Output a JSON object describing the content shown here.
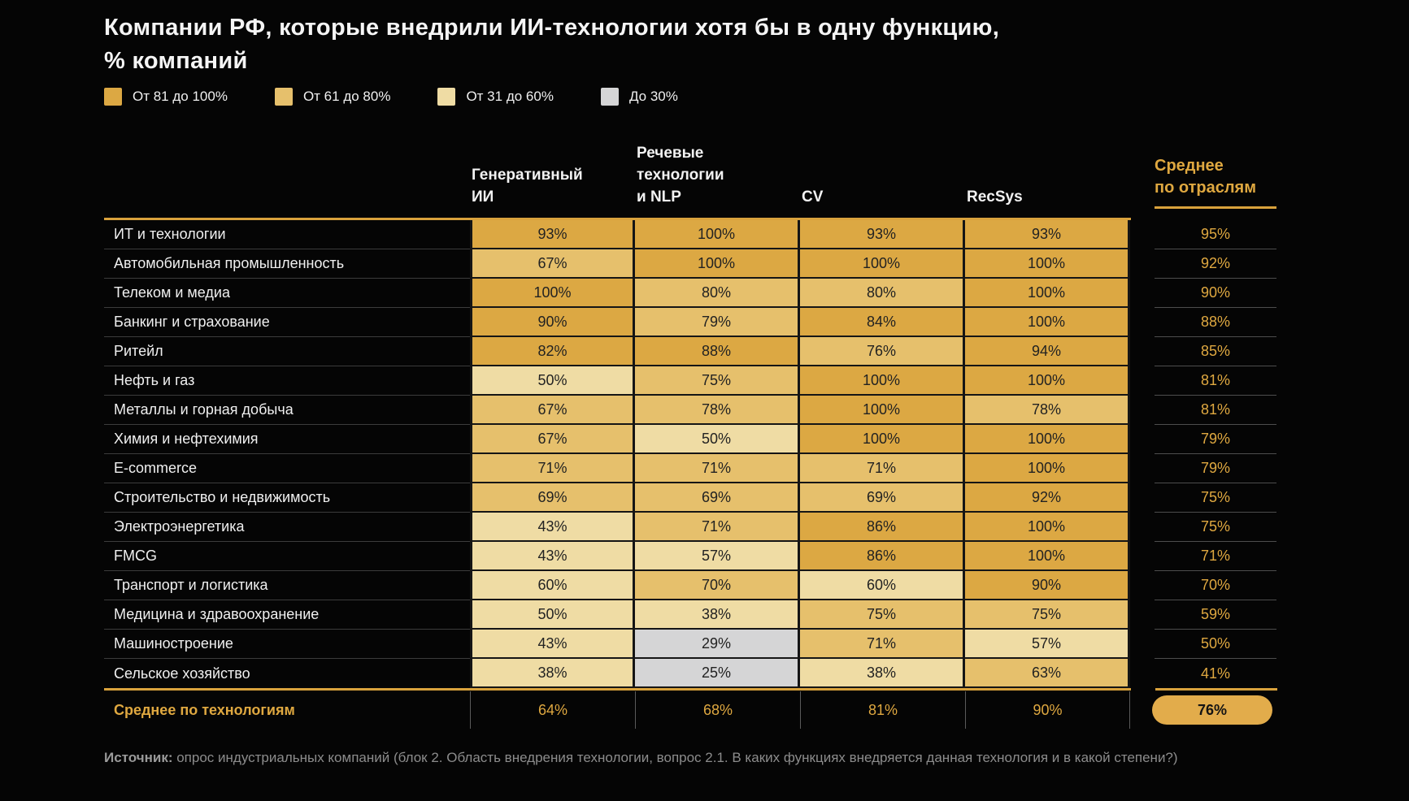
{
  "title": {
    "line1": "Компании РФ, которые внедрили ИИ-технологии хотя бы в одну функцию,",
    "line2": "% компаний"
  },
  "legend": {
    "items": [
      {
        "label": "От 81 до 100%",
        "color": "#DCA843",
        "min": 81
      },
      {
        "label": "От 61 до 80%",
        "color": "#E6C06C",
        "min": 61
      },
      {
        "label": "От 31 до 60%",
        "color": "#EFDCA4",
        "min": 31
      },
      {
        "label": "До 30%",
        "color": "#D5D5D6",
        "min": 0
      }
    ]
  },
  "header": {
    "columns": [
      "Генеративный\nИИ",
      "Речевые\nтехнологии\nи NLP",
      "CV",
      "RecSys"
    ],
    "avg": "Среднее\nпо отраслям"
  },
  "chart_data": {
    "type": "heatmap",
    "title": "Компании РФ, которые внедрили ИИ-технологии хотя бы в одну функцию, % компаний",
    "unit": "%",
    "columns": [
      "Генеративный ИИ",
      "Речевые технологии и NLP",
      "CV",
      "RecSys"
    ],
    "avg_column_header": "Среднее по отраслям",
    "legend_buckets": [
      "От 81 до 100%",
      "От 61 до 80%",
      "От 31 до 60%",
      "До 30%"
    ],
    "rows": [
      {
        "label": "ИТ и технологии",
        "values": [
          93,
          100,
          93,
          93
        ],
        "avg": 95
      },
      {
        "label": "Автомобильная промышленность",
        "values": [
          67,
          100,
          100,
          100
        ],
        "avg": 92
      },
      {
        "label": "Телеком и медиа",
        "values": [
          100,
          80,
          80,
          100
        ],
        "avg": 90
      },
      {
        "label": "Банкинг и страхование",
        "values": [
          90,
          79,
          84,
          100
        ],
        "avg": 88
      },
      {
        "label": "Ритейл",
        "values": [
          82,
          88,
          76,
          94
        ],
        "avg": 85
      },
      {
        "label": "Нефть и газ",
        "values": [
          50,
          75,
          100,
          100
        ],
        "avg": 81
      },
      {
        "label": "Металлы и горная добыча",
        "values": [
          67,
          78,
          100,
          78
        ],
        "avg": 81
      },
      {
        "label": "Химия и нефтехимия",
        "values": [
          67,
          50,
          100,
          100
        ],
        "avg": 79
      },
      {
        "label": "E-commerce",
        "values": [
          71,
          71,
          71,
          100
        ],
        "avg": 79
      },
      {
        "label": "Строительство и недвижимость",
        "values": [
          69,
          69,
          69,
          92
        ],
        "avg": 75
      },
      {
        "label": "Электроэнергетика",
        "values": [
          43,
          71,
          86,
          100
        ],
        "avg": 75
      },
      {
        "label": "FMCG",
        "values": [
          43,
          57,
          86,
          100
        ],
        "avg": 71
      },
      {
        "label": "Транспорт и логистика",
        "values": [
          60,
          70,
          60,
          90
        ],
        "avg": 70
      },
      {
        "label": "Медицина и здравоохранение",
        "values": [
          50,
          38,
          75,
          75
        ],
        "avg": 59
      },
      {
        "label": "Машиностроение",
        "values": [
          43,
          29,
          71,
          57
        ],
        "avg": 50
      },
      {
        "label": "Сельское хозяйство",
        "values": [
          38,
          25,
          38,
          63
        ],
        "avg": 41
      }
    ],
    "footer": {
      "label": "Среднее по технологиям",
      "values": [
        64,
        68,
        81,
        90
      ],
      "avg": 76
    }
  },
  "source": {
    "prefix": "Источник:",
    "text": " опрос индустриальных компаний (блок 2. Область внедрения технологии, вопрос 2.1. В каких функциях внедряется данная технология и в какой степени?)"
  }
}
